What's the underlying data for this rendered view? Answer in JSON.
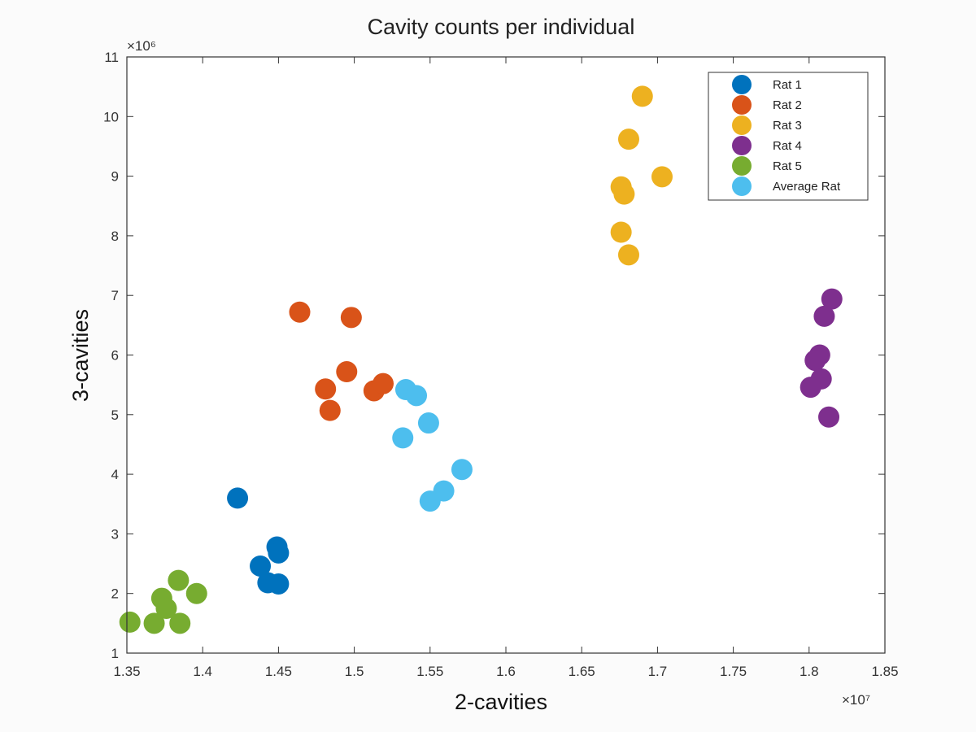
{
  "chart_data": {
    "type": "scatter",
    "title": "Cavity counts per individual",
    "xlabel": "2-cavities",
    "ylabel": "3-cavities",
    "x_exponent_label": "×10⁷",
    "y_exponent_label": "×10⁶",
    "xlim": [
      1.35,
      1.85
    ],
    "ylim": [
      1,
      11
    ],
    "x_ticks": [
      1.35,
      1.4,
      1.45,
      1.5,
      1.55,
      1.6,
      1.65,
      1.7,
      1.75,
      1.8,
      1.85
    ],
    "x_tick_labels": [
      "1.35",
      "1.4",
      "1.45",
      "1.5",
      "1.55",
      "1.6",
      "1.65",
      "1.7",
      "1.75",
      "1.8",
      "1.85"
    ],
    "y_ticks": [
      1,
      2,
      3,
      4,
      5,
      6,
      7,
      8,
      9,
      10,
      11
    ],
    "y_tick_labels": [
      "1",
      "2",
      "3",
      "4",
      "5",
      "6",
      "7",
      "8",
      "9",
      "10",
      "11"
    ],
    "legend_position": "top-right",
    "grid": false,
    "series": [
      {
        "name": "Rat 1",
        "color": "#0072BD",
        "points": [
          [
            1.423,
            3.6
          ],
          [
            1.449,
            2.78
          ],
          [
            1.45,
            2.68
          ],
          [
            1.438,
            2.46
          ],
          [
            1.443,
            2.18
          ],
          [
            1.45,
            2.16
          ]
        ]
      },
      {
        "name": "Rat 2",
        "color": "#D95319",
        "points": [
          [
            1.464,
            6.72
          ],
          [
            1.498,
            6.63
          ],
          [
            1.495,
            5.72
          ],
          [
            1.481,
            5.43
          ],
          [
            1.484,
            5.07
          ],
          [
            1.513,
            5.4
          ],
          [
            1.519,
            5.52
          ]
        ]
      },
      {
        "name": "Rat 3",
        "color": "#EDB120",
        "points": [
          [
            1.69,
            10.34
          ],
          [
            1.681,
            9.62
          ],
          [
            1.703,
            8.99
          ],
          [
            1.676,
            8.82
          ],
          [
            1.678,
            8.7
          ],
          [
            1.676,
            8.06
          ],
          [
            1.681,
            7.68
          ]
        ]
      },
      {
        "name": "Rat 4",
        "color": "#7E2F8E",
        "points": [
          [
            1.815,
            6.94
          ],
          [
            1.81,
            6.65
          ],
          [
            1.807,
            6.0
          ],
          [
            1.804,
            5.91
          ],
          [
            1.808,
            5.6
          ],
          [
            1.801,
            5.46
          ],
          [
            1.813,
            4.96
          ]
        ]
      },
      {
        "name": "Rat 5",
        "color": "#77AC30",
        "points": [
          [
            1.352,
            1.52
          ],
          [
            1.368,
            1.5
          ],
          [
            1.373,
            1.92
          ],
          [
            1.376,
            1.75
          ],
          [
            1.385,
            1.5
          ],
          [
            1.384,
            2.22
          ],
          [
            1.396,
            2.0
          ]
        ]
      },
      {
        "name": "Average Rat",
        "color": "#4DBEEE",
        "points": [
          [
            1.534,
            5.42
          ],
          [
            1.541,
            5.32
          ],
          [
            1.549,
            4.86
          ],
          [
            1.532,
            4.61
          ],
          [
            1.571,
            4.08
          ],
          [
            1.559,
            3.72
          ],
          [
            1.55,
            3.55
          ]
        ]
      }
    ]
  }
}
